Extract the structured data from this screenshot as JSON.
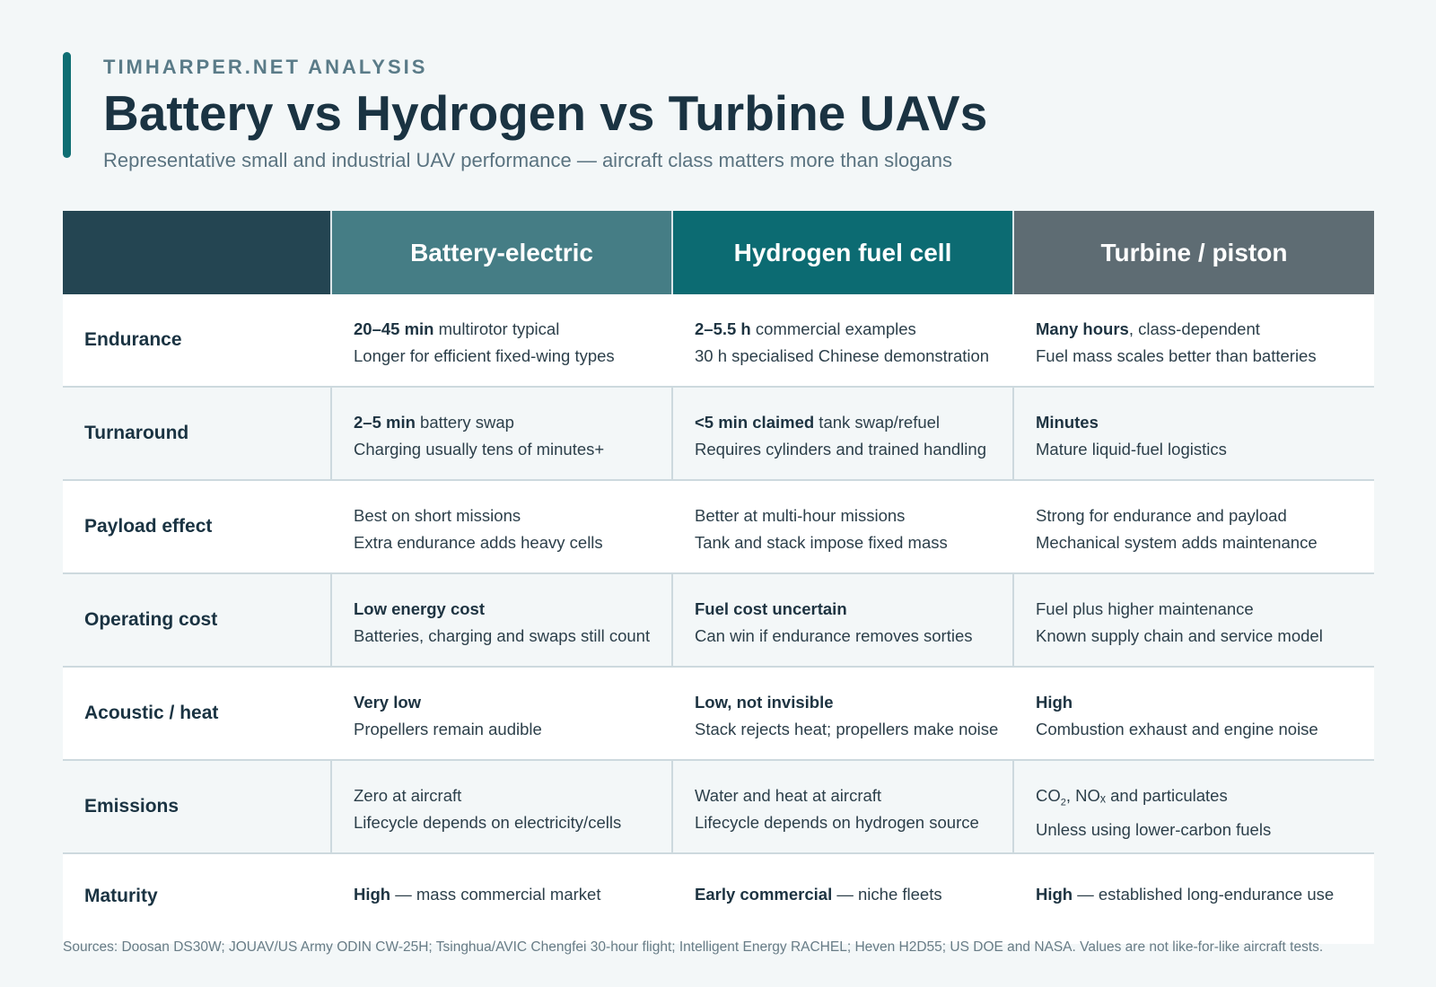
{
  "header": {
    "kicker": "TIMHARPER.NET ANALYSIS",
    "title": "Battery vs Hydrogen vs Turbine UAVs",
    "subtitle": "Representative small and industrial UAV performance — aircraft class matters more than slogans"
  },
  "columns": [
    "",
    "Battery-electric",
    "Hydrogen fuel cell",
    "Turbine / piston"
  ],
  "colors": {
    "accent": "#0f6e73",
    "header_label": "#244552",
    "battery": "#457d85",
    "hydrogen": "#0c6b72",
    "turbine": "#5e6c73"
  },
  "rows": [
    {
      "label": "Endurance",
      "battery": {
        "bold": "20–45 min",
        "rest": " multirotor typical",
        "line2": "Longer for efficient fixed-wing types"
      },
      "hydrogen": {
        "bold": "2–5.5 h",
        "rest": " commercial examples",
        "line2": "30 h specialised Chinese demonstration"
      },
      "turbine": {
        "bold": "Many hours",
        "rest": ", class-dependent",
        "line2": "Fuel mass scales better than batteries"
      }
    },
    {
      "label": "Turnaround",
      "battery": {
        "bold": "2–5 min",
        "rest": " battery swap",
        "line2": "Charging usually tens of minutes+"
      },
      "hydrogen": {
        "bold": "<5 min claimed",
        "rest": " tank swap/refuel",
        "line2": "Requires cylinders and trained handling"
      },
      "turbine": {
        "bold": "Minutes",
        "rest": "",
        "line2": "Mature liquid-fuel logistics"
      }
    },
    {
      "label": "Payload effect",
      "battery": {
        "bold": "",
        "rest": "Best on short missions",
        "line2": "Extra endurance adds heavy cells"
      },
      "hydrogen": {
        "bold": "",
        "rest": "Better at multi-hour missions",
        "line2": "Tank and stack impose fixed mass"
      },
      "turbine": {
        "bold": "",
        "rest": "Strong for endurance and payload",
        "line2": "Mechanical system adds maintenance"
      }
    },
    {
      "label": "Operating cost",
      "battery": {
        "bold": "Low energy cost",
        "rest": "",
        "line2": "Batteries, charging and swaps still count"
      },
      "hydrogen": {
        "bold": "Fuel cost uncertain",
        "rest": "",
        "line2": "Can win if endurance removes sorties"
      },
      "turbine": {
        "bold": "",
        "rest": "Fuel plus higher maintenance",
        "line2": "Known supply chain and service model"
      }
    },
    {
      "label": "Acoustic / heat",
      "battery": {
        "bold": "Very low",
        "rest": "",
        "line2": "Propellers remain audible"
      },
      "hydrogen": {
        "bold": "Low, not invisible",
        "rest": "",
        "line2": "Stack rejects heat; propellers make noise"
      },
      "turbine": {
        "bold": "High",
        "rest": "",
        "line2": "Combustion exhaust and engine noise"
      }
    },
    {
      "label": "Emissions",
      "battery": {
        "bold": "",
        "rest": "Zero at aircraft",
        "line2": "Lifecycle depends on electricity/cells"
      },
      "hydrogen": {
        "bold": "",
        "rest": "Water and heat at aircraft",
        "line2": "Lifecycle depends on hydrogen source"
      },
      "turbine": {
        "bold": "",
        "rest": "CO",
        "sub": "2",
        "rest2": ", NOₓ and particulates",
        "line2": "Unless using lower-carbon fuels"
      }
    },
    {
      "label": "Maturity",
      "battery": {
        "bold": "High",
        "rest": " — mass commercial market",
        "line2": ""
      },
      "hydrogen": {
        "bold": "Early commercial",
        "rest": " — niche fleets",
        "line2": ""
      },
      "turbine": {
        "bold": "High",
        "rest": " — established long-endurance use",
        "line2": ""
      }
    }
  ],
  "sources": "Sources: Doosan DS30W; JOUAV/US Army ODIN CW-25H; Tsinghua/AVIC Chengfei 30-hour flight; Intelligent Energy RACHEL; Heven H2D55; US DOE and NASA. Values are not like-for-like aircraft tests."
}
